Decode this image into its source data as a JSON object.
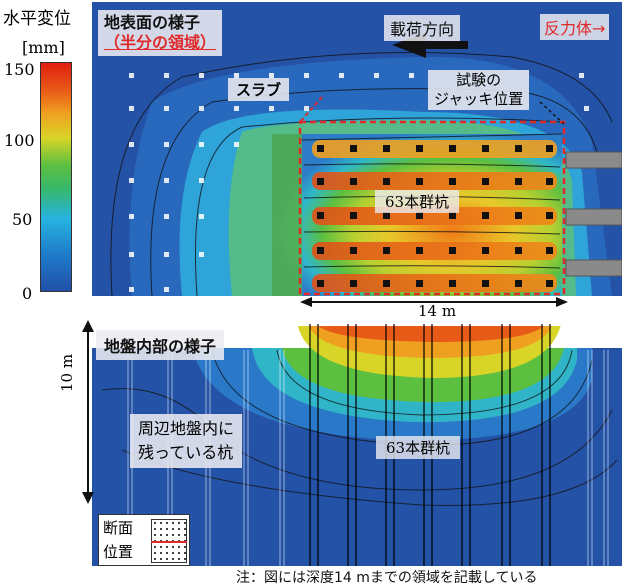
{
  "colorbar": {
    "title": "水平変位",
    "unit": "[mm]",
    "ticks": [
      "150",
      "100",
      "50",
      "0"
    ],
    "stops": [
      "#2050a8",
      "#1e78c8",
      "#28b4e0",
      "#37b86a",
      "#5cbf40",
      "#d8d428",
      "#f0a020",
      "#e85a18",
      "#e02010"
    ]
  },
  "top_panel": {
    "title": "地表面の様子",
    "subtitle": "（半分の領域）",
    "load_direction": "載荷方向",
    "reaction": "反力体",
    "slab": "スラブ",
    "jack": "試験の\nジャッキ位置",
    "pile_group": "63本群杭",
    "width_label": "14 m"
  },
  "bottom_panel": {
    "title": "地盤内部の様子",
    "depth_label": "10 m",
    "surrounding": "周辺地盤内に\n残っている杭",
    "pile_group": "63本群杭",
    "legend_line1": "断面",
    "legend_line2": "位置"
  },
  "footnote": "注：図には深度14 mまでの領域を記載している",
  "colors": {
    "accent_red": "#e02a2a",
    "arrow_black": "#111111"
  }
}
